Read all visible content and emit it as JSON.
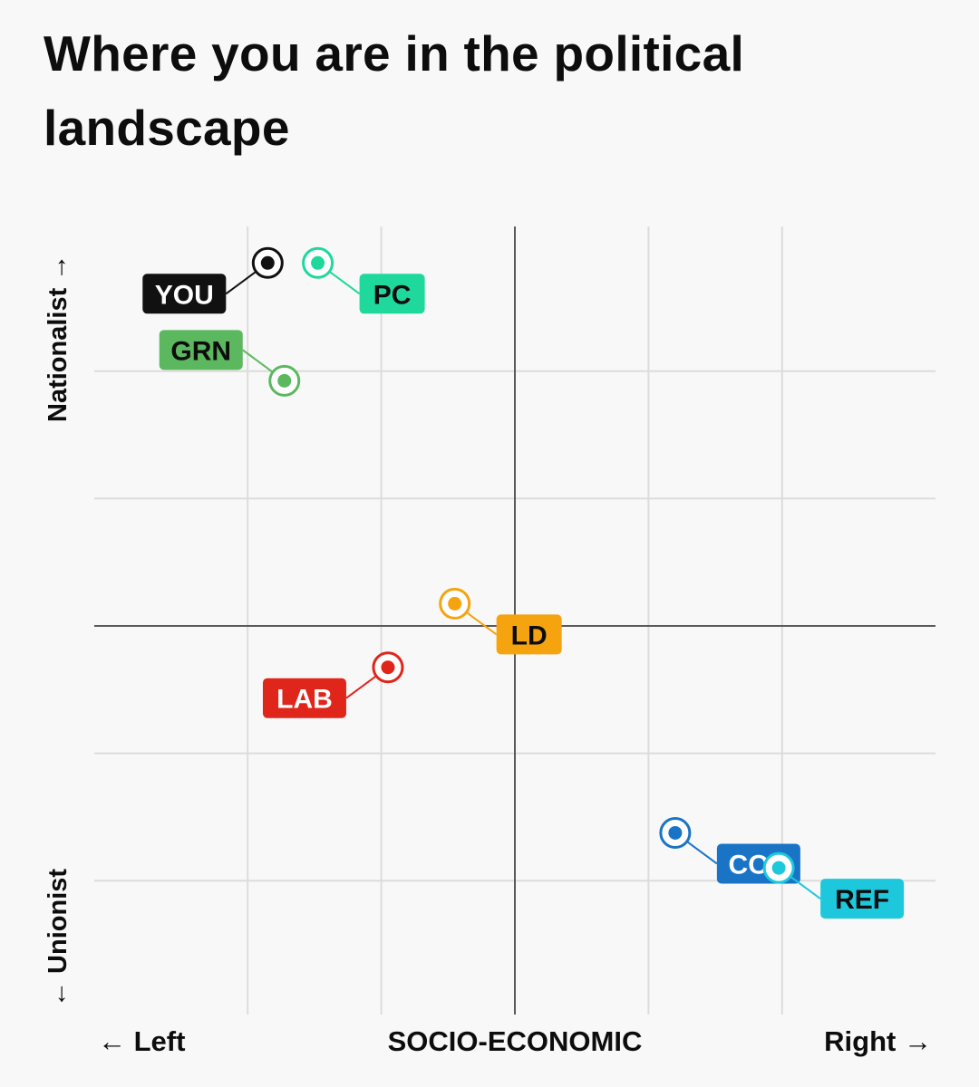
{
  "title": "Where you are in the political landscape",
  "y_axis": {
    "top_label": "Nationalist",
    "top_arrow": "→",
    "bottom_label": "Unionist",
    "bottom_arrow": "←"
  },
  "x_axis": {
    "left_label": "Left",
    "left_arrow": "←",
    "right_label": "Right",
    "right_arrow": "→",
    "center_label": "SOCIO-ECONOMIC"
  },
  "chart_data": {
    "type": "scatter",
    "title": "Where you are in the political landscape",
    "xlabel": "SOCIO-ECONOMIC",
    "xlim": [
      -6,
      6
    ],
    "ylim": [
      -6,
      6
    ],
    "grid": true,
    "x_gridlines": [
      -4,
      -2,
      0,
      2,
      4
    ],
    "y_gridlines": [
      -4,
      -2,
      0,
      2,
      4
    ],
    "points": [
      {
        "label": "YOU",
        "x": -3.7,
        "y": 5.7,
        "color": "#111111",
        "text_color": "#ffffff",
        "label_side": "left-below"
      },
      {
        "label": "PC",
        "x": -2.95,
        "y": 5.7,
        "color": "#1ed99b",
        "text_color": "#0d0d0d",
        "label_side": "right-below"
      },
      {
        "label": "GRN",
        "x": -3.45,
        "y": 3.85,
        "color": "#5cb85f",
        "text_color": "#0d0d0d",
        "label_side": "left-above"
      },
      {
        "label": "LD",
        "x": -0.9,
        "y": 0.35,
        "color": "#f5a30f",
        "text_color": "#0d0d0d",
        "label_side": "right-below"
      },
      {
        "label": "LAB",
        "x": -1.9,
        "y": -0.65,
        "color": "#e0251b",
        "text_color": "#ffffff",
        "label_side": "left-below"
      },
      {
        "label": "CON",
        "x": 2.4,
        "y": -3.25,
        "color": "#1a74c6",
        "text_color": "#ffffff",
        "label_side": "right-below"
      },
      {
        "label": "REF",
        "x": 3.95,
        "y": -3.8,
        "color": "#1ec8dc",
        "text_color": "#0d0d0d",
        "label_side": "right-below"
      }
    ]
  }
}
